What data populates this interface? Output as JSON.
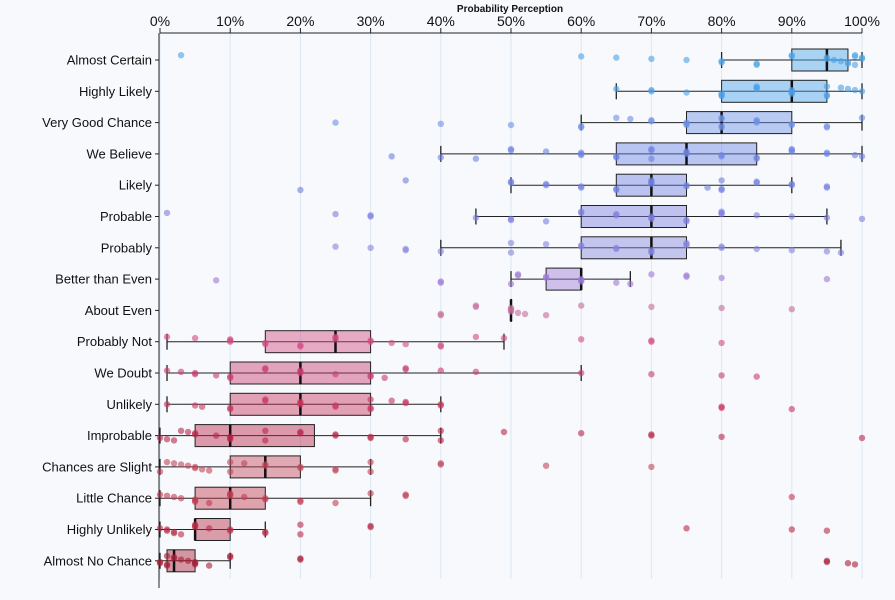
{
  "chart_data": {
    "type": "box",
    "title": "Probability Perception",
    "x_axis": {
      "range": [
        0,
        100
      ],
      "ticks": [
        0,
        10,
        20,
        30,
        40,
        50,
        60,
        70,
        80,
        90,
        100
      ],
      "tick_labels": [
        "0%",
        "10%",
        "20%",
        "30%",
        "40%",
        "50%",
        "60%",
        "70%",
        "80%",
        "90%",
        "100%"
      ],
      "position": "top",
      "grid": true
    },
    "categories": [
      {
        "label": "Almost Certain",
        "color": "#4aa3e6",
        "box": {
          "min": 80,
          "q1": 90,
          "median": 95,
          "q3": 98,
          "max": 100
        },
        "points": [
          3,
          60,
          65,
          70,
          75,
          80,
          80,
          85,
          85,
          90,
          90,
          95,
          95,
          96,
          97,
          98,
          98,
          99,
          99,
          99,
          100,
          100
        ]
      },
      {
        "label": "Highly Likely",
        "color": "#4a9fe8",
        "box": {
          "min": 65,
          "q1": 80,
          "median": 90,
          "q3": 95,
          "max": 100
        },
        "points": [
          65,
          70,
          70,
          75,
          80,
          80,
          80,
          85,
          85,
          85,
          90,
          90,
          90,
          90,
          95,
          95,
          95,
          97,
          98,
          99,
          100
        ]
      },
      {
        "label": "Very Good Chance",
        "color": "#6a8de6",
        "box": {
          "min": 60,
          "q1": 75,
          "median": 80,
          "q3": 90,
          "max": 100
        },
        "points": [
          25,
          40,
          50,
          60,
          60,
          65,
          67,
          70,
          70,
          75,
          75,
          75,
          80,
          80,
          80,
          80,
          85,
          85,
          85,
          90,
          90,
          95,
          95,
          100
        ]
      },
      {
        "label": "We Believe",
        "color": "#6a82e4",
        "box": {
          "min": 40,
          "q1": 65,
          "median": 75,
          "q3": 85,
          "max": 100
        },
        "points": [
          33,
          40,
          45,
          50,
          50,
          55,
          60,
          60,
          60,
          65,
          65,
          70,
          70,
          70,
          75,
          75,
          75,
          80,
          80,
          85,
          85,
          90,
          90,
          90,
          95,
          95,
          99,
          100
        ]
      },
      {
        "label": "Likely",
        "color": "#6e7fe0",
        "box": {
          "min": 50,
          "q1": 65,
          "median": 70,
          "q3": 75,
          "max": 90
        },
        "points": [
          20,
          35,
          50,
          50,
          55,
          55,
          60,
          60,
          65,
          65,
          70,
          70,
          70,
          70,
          75,
          75,
          78,
          80,
          80,
          80,
          85,
          85,
          90,
          90,
          95,
          95
        ]
      },
      {
        "label": "Probable",
        "color": "#7b7ddf",
        "box": {
          "min": 45,
          "q1": 60,
          "median": 70,
          "q3": 75,
          "max": 95
        },
        "points": [
          1,
          25,
          30,
          30,
          45,
          50,
          50,
          55,
          60,
          60,
          65,
          65,
          70,
          70,
          70,
          75,
          75,
          80,
          80,
          80,
          85,
          90,
          95,
          100
        ]
      },
      {
        "label": "Probably",
        "color": "#8384de",
        "box": {
          "min": 40,
          "q1": 60,
          "median": 70,
          "q3": 75,
          "max": 97
        },
        "points": [
          25,
          30,
          35,
          35,
          40,
          50,
          50,
          55,
          60,
          60,
          65,
          65,
          70,
          70,
          70,
          75,
          75,
          75,
          80,
          80,
          85,
          90,
          95,
          97
        ]
      },
      {
        "label": "Better than Even",
        "color": "#9b79d6",
        "box": {
          "min": 50,
          "q1": 55,
          "median": 60,
          "q3": 60,
          "max": 67
        },
        "points": [
          8,
          40,
          40,
          50,
          51,
          51,
          55,
          55,
          60,
          60,
          60,
          65,
          67,
          70,
          75,
          75,
          80,
          95
        ]
      },
      {
        "label": "About Even",
        "color": "#c46a9a",
        "box": {
          "min": 50,
          "q1": 50,
          "median": 50,
          "q3": 50,
          "max": 50
        },
        "points": [
          40,
          40,
          45,
          45,
          50,
          50,
          50,
          50,
          51,
          52,
          55,
          60,
          70,
          80,
          90
        ]
      },
      {
        "label": "Probably Not",
        "color": "#d24a82",
        "box": {
          "min": 1,
          "q1": 15,
          "median": 25,
          "q3": 30,
          "max": 49
        },
        "points": [
          1,
          5,
          10,
          10,
          10,
          15,
          15,
          20,
          20,
          25,
          25,
          25,
          30,
          30,
          33,
          35,
          40,
          40,
          45,
          49,
          60,
          70,
          70,
          80
        ]
      },
      {
        "label": "We Doubt",
        "color": "#c83c6e",
        "box": {
          "min": 1,
          "q1": 10,
          "median": 20,
          "q3": 30,
          "max": 60
        },
        "points": [
          1,
          3,
          5,
          5,
          8,
          10,
          10,
          15,
          15,
          20,
          20,
          20,
          25,
          30,
          30,
          32,
          35,
          35,
          40,
          45,
          60,
          70,
          80,
          85
        ]
      },
      {
        "label": "Unlikely",
        "color": "#c8345e",
        "box": {
          "min": 1,
          "q1": 10,
          "median": 20,
          "q3": 30,
          "max": 40
        },
        "points": [
          1,
          5,
          6,
          10,
          10,
          15,
          15,
          20,
          20,
          20,
          25,
          25,
          30,
          30,
          30,
          33,
          35,
          35,
          40,
          40,
          80,
          80,
          90
        ]
      },
      {
        "label": "Improbable",
        "color": "#b8244a",
        "box": {
          "min": 0,
          "q1": 5,
          "median": 10,
          "q3": 22,
          "max": 40
        },
        "points": [
          0,
          1,
          2,
          3,
          4,
          5,
          5,
          8,
          10,
          10,
          10,
          15,
          15,
          20,
          20,
          25,
          25,
          30,
          30,
          35,
          40,
          40,
          49,
          60,
          70,
          70,
          80,
          100
        ]
      },
      {
        "label": "Chances are Slight",
        "color": "#c24458",
        "box": {
          "min": 0,
          "q1": 10,
          "median": 15,
          "q3": 20,
          "max": 30
        },
        "points": [
          0,
          1,
          2,
          3,
          4,
          5,
          5,
          6,
          7,
          10,
          10,
          12,
          15,
          15,
          20,
          20,
          25,
          25,
          30,
          30,
          40,
          40,
          55,
          70
        ]
      },
      {
        "label": "Little Chance",
        "color": "#c23a50",
        "box": {
          "min": 0,
          "q1": 5,
          "median": 10,
          "q3": 15,
          "max": 30
        },
        "points": [
          0,
          1,
          2,
          3,
          5,
          5,
          5,
          7,
          10,
          10,
          10,
          12,
          15,
          15,
          20,
          20,
          25,
          30,
          35,
          35,
          90
        ]
      },
      {
        "label": "Highly Unlikely",
        "color": "#b82a46",
        "box": {
          "min": 0,
          "q1": 5,
          "median": 5,
          "q3": 10,
          "max": 15
        },
        "points": [
          0,
          1,
          1,
          2,
          2,
          3,
          5,
          5,
          5,
          7,
          10,
          10,
          15,
          15,
          20,
          20,
          30,
          30,
          75,
          90,
          95
        ]
      },
      {
        "label": "Almost No Chance",
        "color": "#a81c36",
        "box": {
          "min": 0,
          "q1": 1,
          "median": 2,
          "q3": 5,
          "max": 10
        },
        "points": [
          0,
          0,
          1,
          1,
          1,
          2,
          2,
          3,
          4,
          5,
          5,
          5,
          7,
          10,
          10,
          20,
          20,
          95,
          95,
          98,
          99
        ]
      }
    ]
  }
}
